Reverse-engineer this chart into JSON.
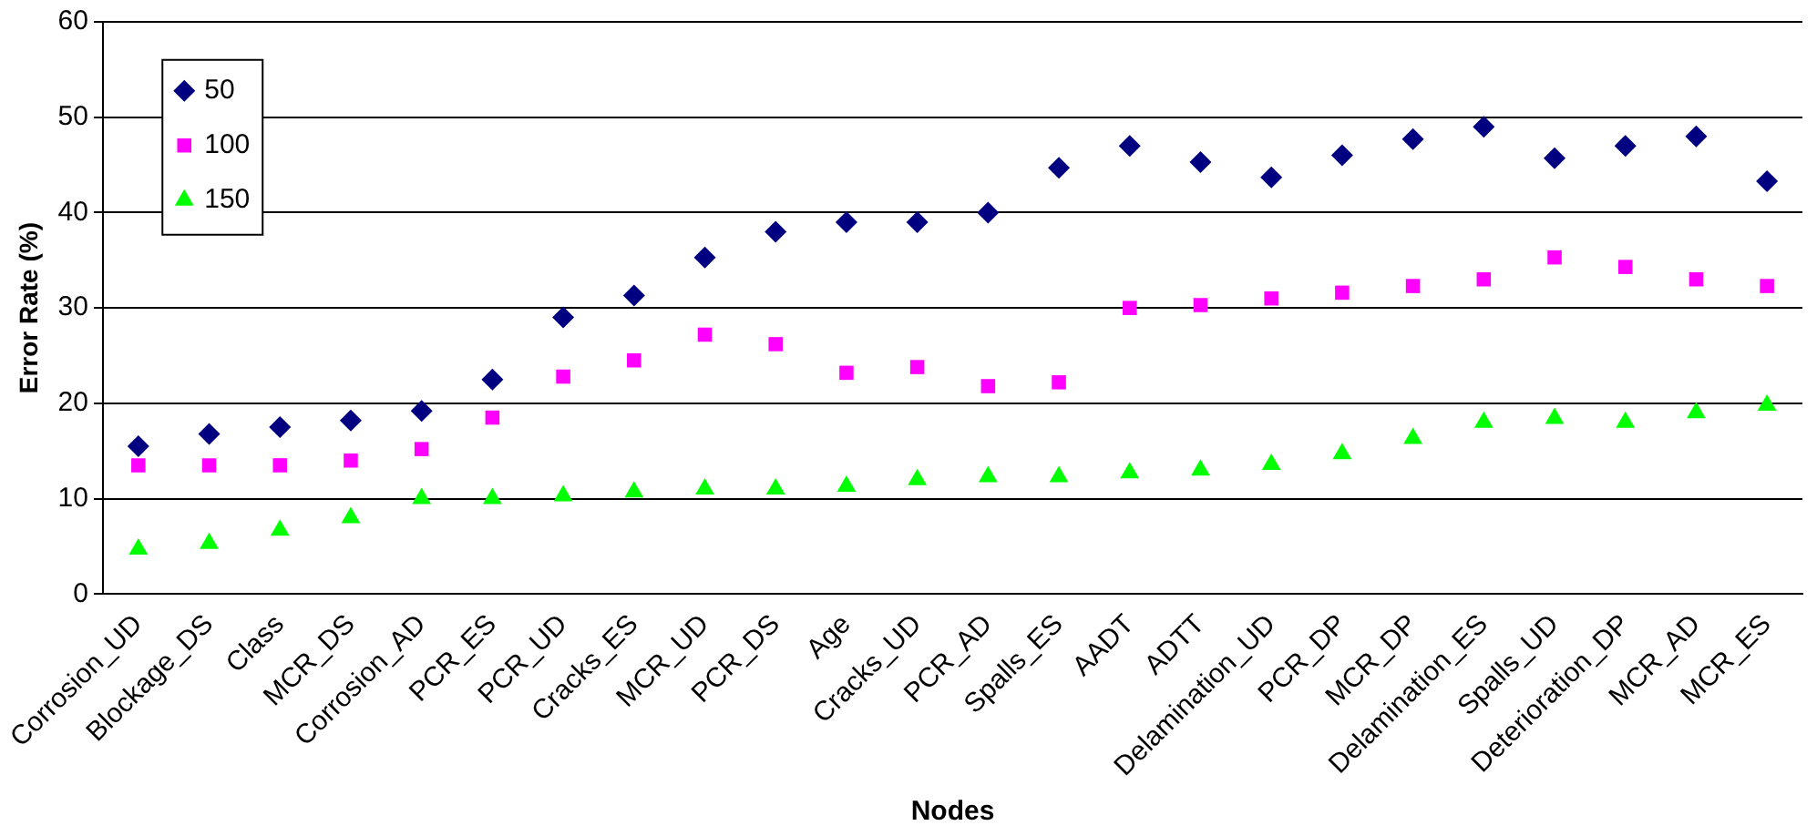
{
  "chart_data": {
    "type": "scatter",
    "xlabel": "Nodes",
    "ylabel": "Error Rate (%)",
    "categories": [
      "Corrosion_UD",
      "Blockage_DS",
      "Class",
      "MCR_DS",
      "Corrosion_AD",
      "PCR_ES",
      "PCR_UD",
      "Cracks_ES",
      "MCR_UD",
      "PCR_DS",
      "Age",
      "Cracks_UD",
      "PCR_AD",
      "Spalls_ES",
      "AADT",
      "ADTT",
      "Delamination_UD",
      "PCR_DP",
      "MCR_DP",
      "Delamination_ES",
      "Spalls_UD",
      "Deterioration_DP",
      "MCR_AD",
      "MCR_ES"
    ],
    "series": [
      {
        "name": "50",
        "color": "#000080",
        "marker": "diamond",
        "values": [
          15.5,
          16.8,
          17.5,
          18.2,
          19.2,
          22.5,
          29,
          31.3,
          35.3,
          38,
          39,
          39,
          40,
          44.7,
          47,
          45.3,
          43.7,
          46,
          47.7,
          49,
          45.7,
          47,
          48,
          43.3
        ]
      },
      {
        "name": "100",
        "color": "#ff00ff",
        "marker": "square",
        "values": [
          13.5,
          13.5,
          13.5,
          14,
          15.2,
          18.5,
          22.8,
          24.5,
          27.2,
          26.2,
          23.2,
          23.8,
          21.8,
          22.2,
          30,
          30.3,
          31,
          31.6,
          32.3,
          33,
          35.3,
          34.3,
          33,
          32.3
        ]
      },
      {
        "name": "150",
        "color": "#00ff00",
        "marker": "triangle",
        "values": [
          4.7,
          5.3,
          6.7,
          8,
          10,
          10,
          10.3,
          10.7,
          11,
          11,
          11.3,
          12,
          12.3,
          12.3,
          12.7,
          13,
          13.6,
          14.7,
          16.3,
          18,
          18.4,
          18,
          19,
          19.8
        ]
      }
    ],
    "ylim": [
      0,
      60
    ],
    "yticks": [
      0,
      10,
      20,
      30,
      40,
      50,
      60
    ],
    "grid": "y",
    "legend": "top left"
  }
}
